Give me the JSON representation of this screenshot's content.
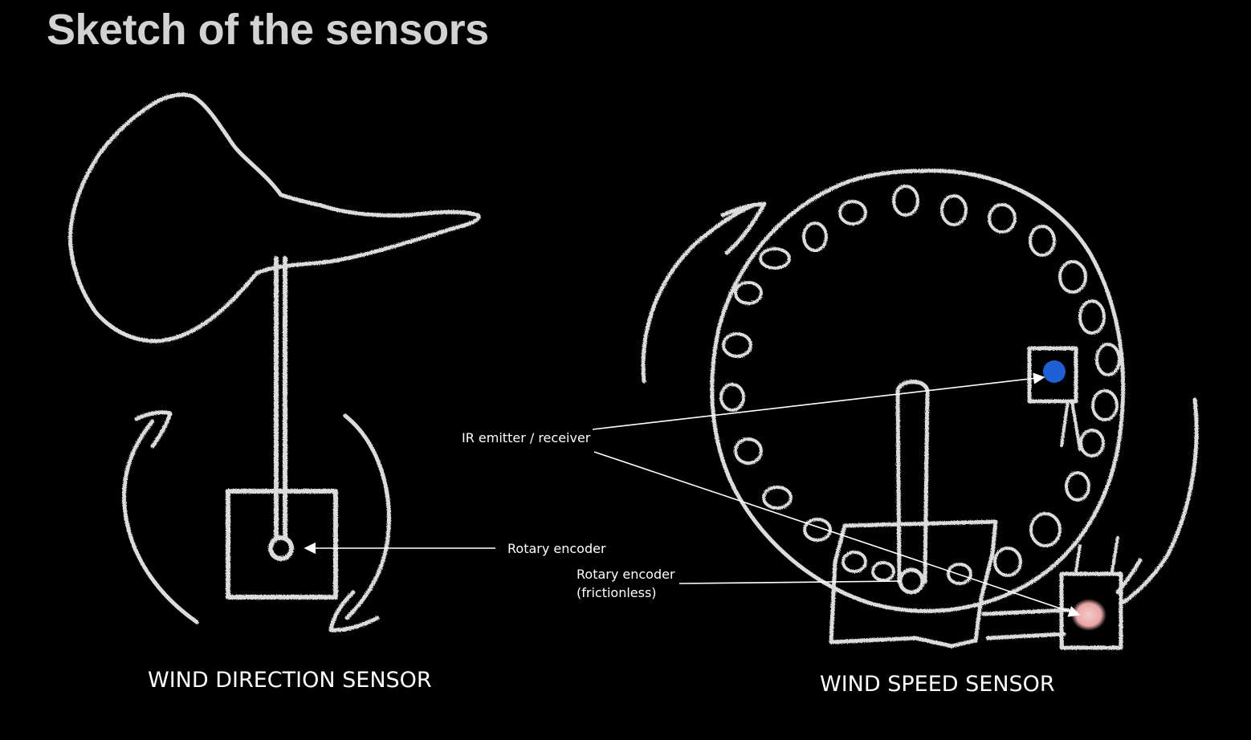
{
  "slide": {
    "title": "Sketch of the sensors"
  },
  "direction_sensor": {
    "caption": "WIND DIRECTION SENSOR",
    "encoder_label": "Rotary encoder"
  },
  "speed_sensor": {
    "caption": "WIND SPEED SENSOR",
    "ir_label": "IR emitter / receiver",
    "encoder_label_line1": "Rotary encoder",
    "encoder_label_line2": "(frictionless)"
  },
  "colors": {
    "background": "#000000",
    "chalk": "#dcdcdc",
    "title": "#d2d2d2",
    "ir_emitter_blue": "#1f5fd6",
    "ir_receiver_pink": "#f2b8b8"
  }
}
